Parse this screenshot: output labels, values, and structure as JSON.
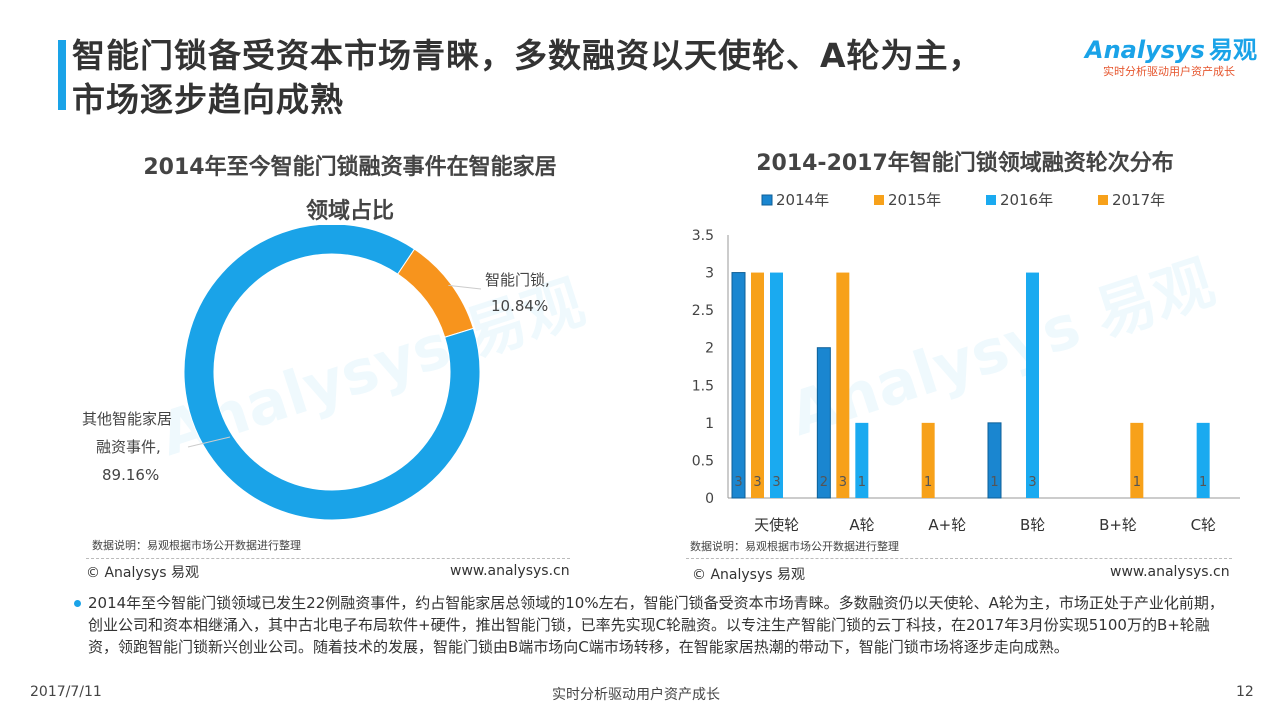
{
  "slide": {
    "title_line1": "智能门锁备受资本市场青睐，多数融资以天使轮、A轮为主，",
    "title_line2": "市场逐步趋向成熟",
    "logo_main": "Analysys",
    "logo_cn": "易观",
    "logo_sub": "实时分析驱动用户资产成长",
    "body": "2014年至今智能门锁领域已发生22例融资事件，约占智能家居总领域的10%左右，智能门锁备受资本市场青睐。多数融资仍以天使轮、A轮为主，市场正处于产业化前期，创业公司和资本相继涌入，其中古北电子布局软件+硬件，推出智能门锁，已率先实现C轮融资。以专注生产智能门锁的云丁科技，在2017年3月份实现5100万的B+轮融资，领跑智能门锁新兴创业公司。随着技术的发展，智能门锁由B端市场向C端市场转移，在智能家居热潮的带动下，智能门锁市场将逐步走向成熟。",
    "footer_date": "2017/7/11",
    "footer_slogan": "实时分析驱动用户资产成长",
    "page_number": "12"
  },
  "left_panel": {
    "title_line1": "2014年至今智能门锁融资事件在智能家居",
    "title_line2": "领域占比",
    "note": "数据说明：易观根据市场公开数据进行整理",
    "copyright": "© Analysys 易观",
    "website": "www.analysys.cn"
  },
  "right_panel": {
    "title": "2014-2017年智能门锁领域融资轮次分布",
    "note": "数据说明：易观根据市场公开数据进行整理",
    "copyright": "© Analysys 易观",
    "website": "www.analysys.cn"
  },
  "chart_data": [
    {
      "type": "pie",
      "donut": true,
      "title": "2014年至今智能门锁融资事件在智能家居领域占比",
      "slices": [
        {
          "label_line1": "智能门锁,",
          "label_line2": "",
          "value_label": "10.84%",
          "value": 10.84,
          "color": "#f7941d"
        },
        {
          "label_line1": "其他智能家居",
          "label_line2": "融资事件,",
          "value_label": "89.16%",
          "value": 89.16,
          "color": "#1aa3e8"
        }
      ]
    },
    {
      "type": "bar",
      "title": "2014-2017年智能门锁领域融资轮次分布",
      "categories": [
        "天使轮",
        "A轮",
        "A+轮",
        "B轮",
        "B+轮",
        "C轮"
      ],
      "ylim": [
        0,
        3.5
      ],
      "yticks": [
        "0",
        "0.5",
        "1",
        "1.5",
        "2",
        "2.5",
        "3",
        "3.5"
      ],
      "legend_position": "top",
      "series": [
        {
          "name": "2014年",
          "color": "#1a86d0",
          "values": [
            3,
            2,
            0,
            1,
            0,
            0
          ],
          "labels": [
            "3",
            "2",
            "",
            "1",
            "",
            ""
          ]
        },
        {
          "name": "2015年",
          "color": "#f7a11a",
          "values": [
            3,
            3,
            1,
            0,
            0,
            0
          ],
          "labels": [
            "3",
            "3",
            "1",
            "",
            "",
            ""
          ]
        },
        {
          "name": "2016年",
          "color": "#1aaaf0",
          "values": [
            3,
            1,
            0,
            3,
            0,
            1
          ],
          "labels": [
            "3",
            "1",
            "",
            "3",
            "",
            "1"
          ]
        },
        {
          "name": "2017年",
          "color": "#f7a11a",
          "values": [
            0,
            0,
            0,
            0,
            1,
            0
          ],
          "labels": [
            "",
            "",
            "",
            "",
            "1",
            ""
          ]
        }
      ]
    }
  ]
}
